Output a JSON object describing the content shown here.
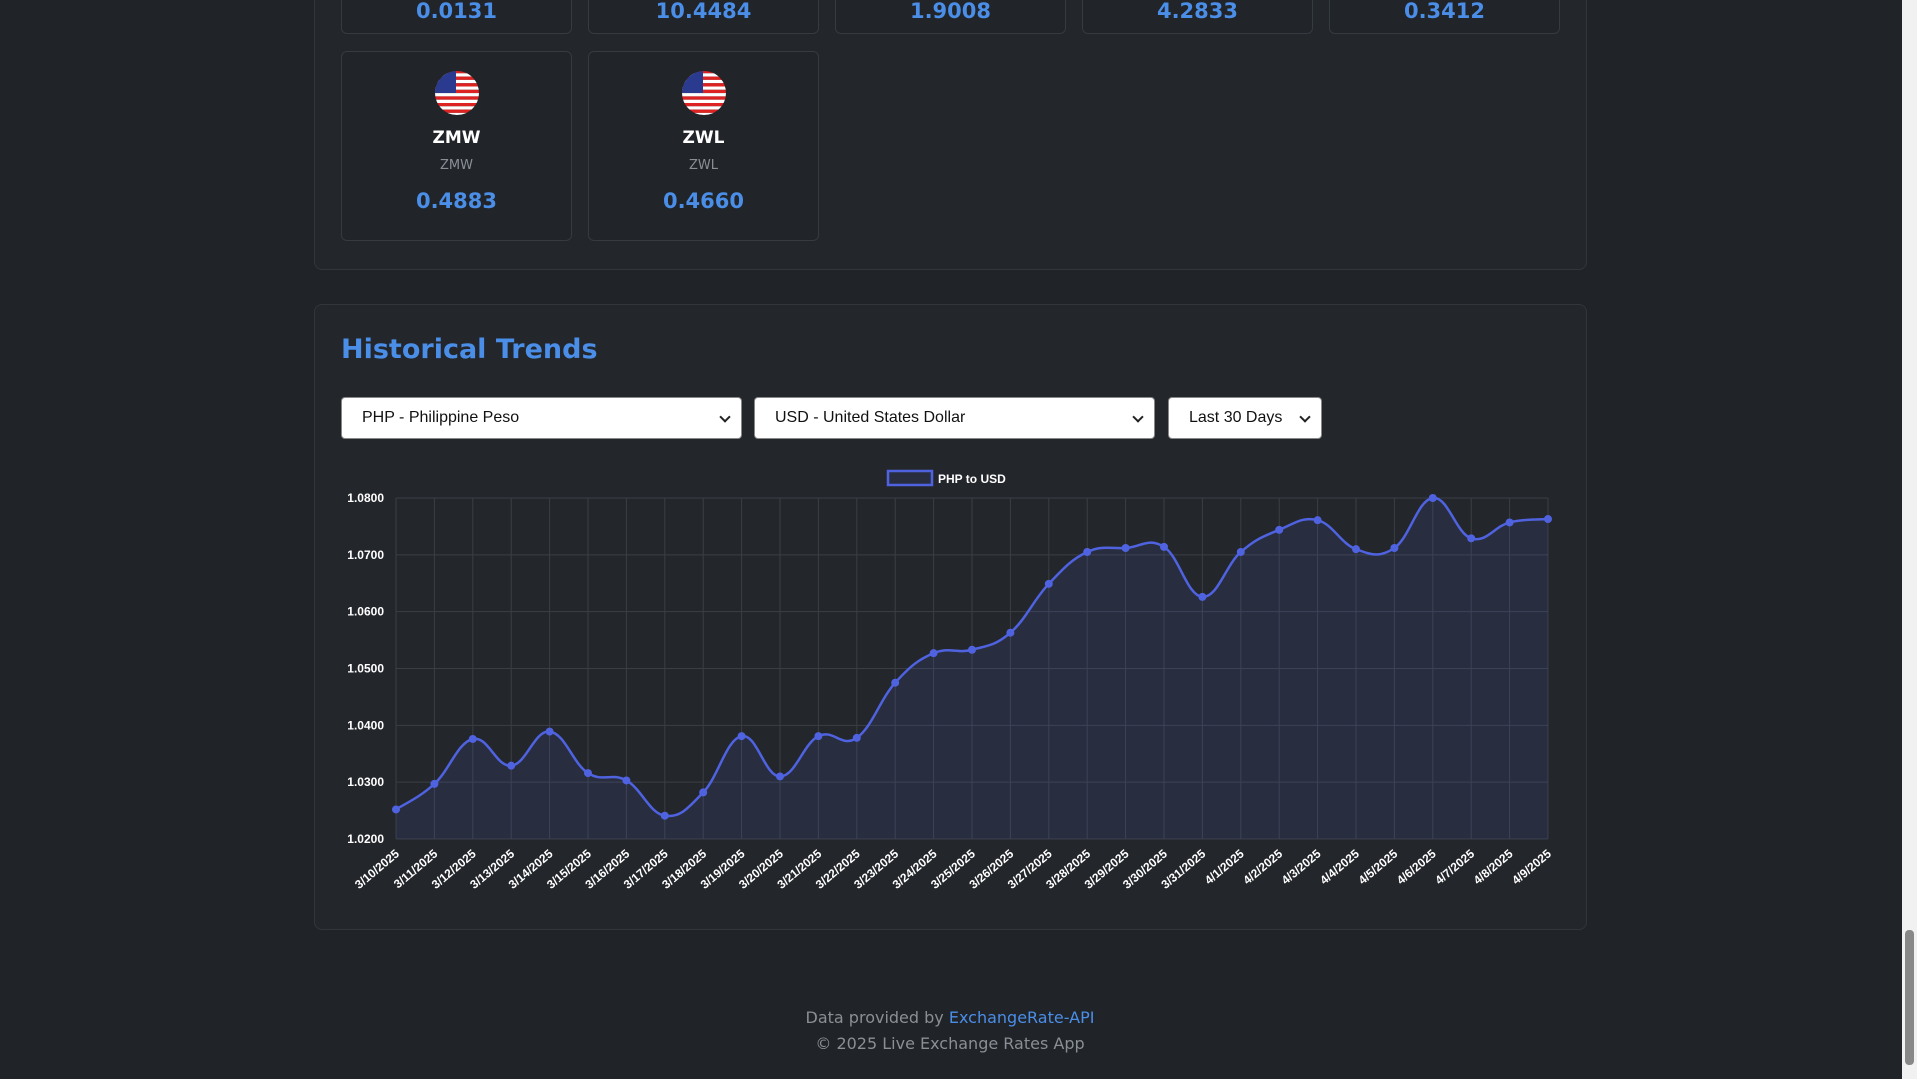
{
  "top_cards": [
    "0.0131",
    "10.4484",
    "1.9008",
    "4.2833",
    "0.3412"
  ],
  "cards": [
    {
      "code": "ZMW",
      "name": "ZMW",
      "rate": "0.4883"
    },
    {
      "code": "ZWL",
      "name": "ZWL",
      "rate": "0.4660"
    }
  ],
  "history": {
    "title": "Historical Trends",
    "from_select": "PHP - Philippine Peso",
    "to_select": "USD - United States Dollar",
    "range_select": "Last 30 Days"
  },
  "chart_data": {
    "type": "line",
    "categories": [
      "3/10/2025",
      "3/11/2025",
      "3/12/2025",
      "3/13/2025",
      "3/14/2025",
      "3/15/2025",
      "3/16/2025",
      "3/17/2025",
      "3/18/2025",
      "3/19/2025",
      "3/20/2025",
      "3/21/2025",
      "3/22/2025",
      "3/23/2025",
      "3/24/2025",
      "3/25/2025",
      "3/26/2025",
      "3/27/2025",
      "3/28/2025",
      "3/29/2025",
      "3/30/2025",
      "3/31/2025",
      "4/1/2025",
      "4/2/2025",
      "4/3/2025",
      "4/4/2025",
      "4/5/2025",
      "4/6/2025",
      "4/7/2025",
      "4/8/2025",
      "4/9/2025"
    ],
    "series": [
      {
        "name": "PHP to USD",
        "color": "#4f63e0",
        "values": [
          1.0252,
          1.0297,
          1.0376,
          1.0329,
          1.0389,
          1.0316,
          1.0303,
          1.0241,
          1.0282,
          1.0381,
          1.031,
          1.0381,
          1.0378,
          1.0475,
          1.0527,
          1.0533,
          1.0563,
          1.0649,
          1.0705,
          1.0712,
          1.0714,
          1.0626,
          1.0705,
          1.0744,
          1.0761,
          1.071,
          1.0712,
          1.08,
          1.0729,
          1.0757,
          1.0763
        ]
      }
    ],
    "ylim": [
      1.02,
      1.08
    ],
    "yticks": [
      {
        "value": 1.02,
        "label": "1.0200"
      },
      {
        "value": 1.03,
        "label": "1.0300"
      },
      {
        "value": 1.04,
        "label": "1.0400"
      },
      {
        "value": 1.05,
        "label": "1.0500"
      },
      {
        "value": 1.06,
        "label": "1.0600"
      },
      {
        "value": 1.07,
        "label": "1.0700"
      },
      {
        "value": 1.08,
        "label": "1.0800"
      }
    ],
    "grid": true,
    "legend": "top"
  },
  "footer": {
    "prefix": "Data provided by",
    "link": "ExchangeRate-API",
    "copyright": "© 2025 Live Exchange Rates App"
  }
}
